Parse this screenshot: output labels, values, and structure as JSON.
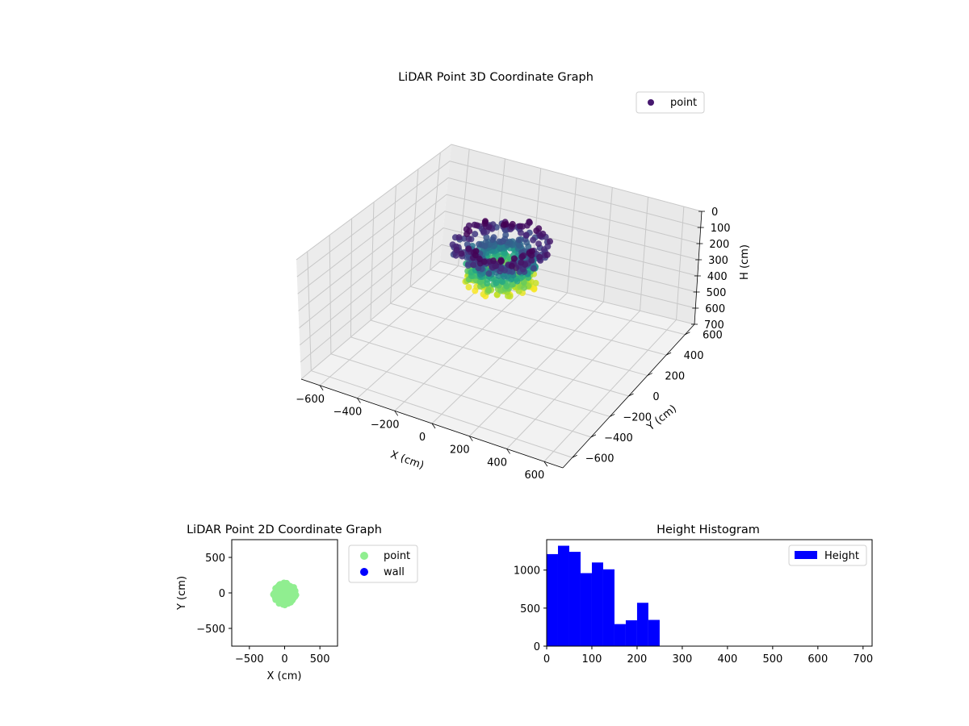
{
  "chart_data": [
    {
      "type": "scatter",
      "projection": "3d",
      "title": "LiDAR Point 3D Coordinate Graph",
      "xlabel": "X (cm)",
      "ylabel": "Y (cm)",
      "zlabel": "H (cm)",
      "xlim": [
        -700,
        700
      ],
      "ylim": [
        -700,
        700
      ],
      "zlim": [
        0,
        700
      ],
      "z_inverted": true,
      "xticks": [
        "−600",
        "−400",
        "−200",
        "0",
        "200",
        "400",
        "600"
      ],
      "yticks": [
        "−600",
        "−400",
        "−200",
        "0",
        "200",
        "400",
        "600"
      ],
      "zticks": [
        "0",
        "100",
        "200",
        "300",
        "400",
        "500",
        "600",
        "700"
      ],
      "legend": {
        "entries": [
          "point"
        ],
        "placement": "top-right"
      },
      "colormap": "viridis",
      "point_cloud": {
        "center_x": 0,
        "center_y": 0,
        "radius": 170,
        "h_min": 0,
        "h_max": 250
      },
      "colors": {
        "legend_marker": "#46186f",
        "pane": "#f2f2f2",
        "grid": "#c8c8c8"
      }
    },
    {
      "type": "scatter",
      "title": "LiDAR Point 2D Coordinate Graph",
      "xlabel": "X (cm)",
      "ylabel": "Y (cm)",
      "xlim": [
        -750,
        750
      ],
      "ylim": [
        -750,
        750
      ],
      "xticks": [
        "−500",
        "0",
        "500"
      ],
      "yticks": [
        "−500",
        "0",
        "500"
      ],
      "series": [
        {
          "name": "point",
          "color": "#90ee90",
          "cloud": {
            "center_x": 0,
            "center_y": -10,
            "radius": 150
          }
        },
        {
          "name": "wall",
          "color": "#0000ff",
          "cloud": null
        }
      ],
      "legend": {
        "placement": "outside-right"
      }
    },
    {
      "type": "bar",
      "subtype": "histogram",
      "title": "Height Histogram",
      "xlabel": "",
      "ylabel": "",
      "xlim": [
        0,
        720
      ],
      "ylim": [
        0,
        1400
      ],
      "xticks": [
        "0",
        "100",
        "200",
        "300",
        "400",
        "500",
        "600",
        "700"
      ],
      "yticks": [
        "0",
        "500",
        "1000"
      ],
      "bin_width": 25,
      "bin_edges": [
        0,
        25,
        50,
        75,
        100,
        125,
        150,
        175,
        200,
        225,
        250
      ],
      "values": [
        1210,
        1320,
        1240,
        960,
        1100,
        1010,
        290,
        340,
        570,
        345
      ],
      "series": [
        {
          "name": "Height",
          "color": "#0000ff"
        }
      ],
      "legend": {
        "placement": "top-right"
      }
    }
  ]
}
